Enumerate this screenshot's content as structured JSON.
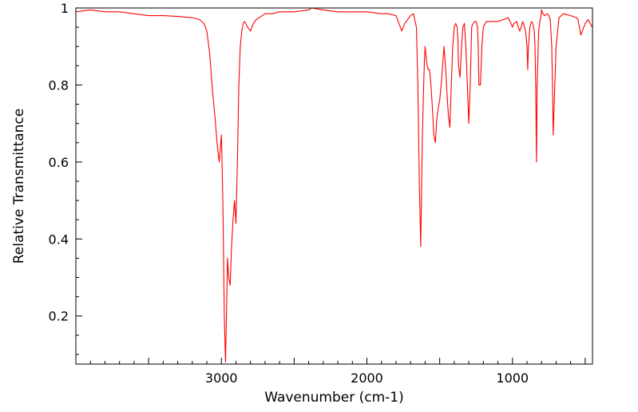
{
  "chart_data": {
    "type": "line",
    "title": "",
    "xlabel": "Wavenumber (cm-1)",
    "ylabel": "Relative Transmittance",
    "xlim": [
      4000,
      450
    ],
    "ylim": [
      0.075,
      1.0
    ],
    "x_reversed": true,
    "x_ticks_major": [
      3000,
      2000,
      1000
    ],
    "y_ticks_major": [
      0.2,
      0.4,
      0.6,
      0.8,
      1
    ],
    "x_tick_labels": [
      "3000",
      "2000",
      "1000"
    ],
    "y_tick_labels": [
      "0.2",
      "0.4",
      "0.6",
      "0.8",
      "1"
    ],
    "grid": false,
    "line_color": "#ff0000",
    "series": [
      {
        "x": [
          4000,
          3900,
          3800,
          3700,
          3600,
          3500,
          3400,
          3300,
          3200,
          3150,
          3120,
          3100,
          3080,
          3060,
          3045,
          3030,
          3015,
          3000,
          2990,
          2980,
          2972,
          2965,
          2958,
          2950,
          2940,
          2930,
          2920,
          2910,
          2900,
          2890,
          2880,
          2870,
          2860,
          2850,
          2840,
          2820,
          2800,
          2780,
          2760,
          2740,
          2720,
          2700,
          2650,
          2600,
          2500,
          2400,
          2380,
          2300,
          2200,
          2100,
          2000,
          1900,
          1850,
          1800,
          1780,
          1760,
          1740,
          1720,
          1700,
          1680,
          1660,
          1650,
          1640,
          1630,
          1620,
          1610,
          1605,
          1600,
          1595,
          1590,
          1580,
          1570,
          1560,
          1550,
          1540,
          1530,
          1520,
          1510,
          1500,
          1490,
          1480,
          1470,
          1460,
          1450,
          1440,
          1430,
          1420,
          1410,
          1400,
          1390,
          1380,
          1375,
          1370,
          1360,
          1350,
          1340,
          1330,
          1320,
          1310,
          1300,
          1290,
          1280,
          1270,
          1260,
          1250,
          1240,
          1235,
          1230,
          1220,
          1210,
          1200,
          1180,
          1150,
          1100,
          1060,
          1030,
          1010,
          1000,
          990,
          970,
          960,
          950,
          940,
          930,
          920,
          910,
          900,
          895,
          890,
          880,
          870,
          860,
          850,
          845,
          840,
          835,
          830,
          820,
          810,
          805,
          800,
          790,
          780,
          760,
          750,
          740,
          730,
          725,
          720,
          700,
          680,
          650,
          600,
          560,
          550,
          540,
          530,
          520,
          500,
          480,
          460,
          450
        ],
        "y": [
          0.99,
          0.995,
          0.99,
          0.99,
          0.985,
          0.98,
          0.98,
          0.978,
          0.975,
          0.97,
          0.96,
          0.94,
          0.88,
          0.78,
          0.72,
          0.65,
          0.6,
          0.67,
          0.5,
          0.2,
          0.08,
          0.2,
          0.35,
          0.3,
          0.28,
          0.38,
          0.45,
          0.5,
          0.44,
          0.6,
          0.8,
          0.9,
          0.94,
          0.96,
          0.965,
          0.95,
          0.94,
          0.96,
          0.97,
          0.975,
          0.98,
          0.985,
          0.985,
          0.99,
          0.99,
          0.995,
          1.0,
          0.995,
          0.99,
          0.99,
          0.99,
          0.985,
          0.985,
          0.98,
          0.96,
          0.94,
          0.96,
          0.97,
          0.98,
          0.985,
          0.95,
          0.8,
          0.55,
          0.38,
          0.65,
          0.8,
          0.86,
          0.9,
          0.88,
          0.86,
          0.84,
          0.84,
          0.8,
          0.74,
          0.67,
          0.65,
          0.71,
          0.74,
          0.76,
          0.8,
          0.85,
          0.9,
          0.85,
          0.78,
          0.72,
          0.69,
          0.8,
          0.9,
          0.95,
          0.96,
          0.95,
          0.92,
          0.85,
          0.82,
          0.9,
          0.95,
          0.96,
          0.9,
          0.8,
          0.7,
          0.8,
          0.95,
          0.96,
          0.965,
          0.965,
          0.95,
          0.9,
          0.8,
          0.8,
          0.9,
          0.95,
          0.965,
          0.965,
          0.965,
          0.97,
          0.975,
          0.96,
          0.95,
          0.96,
          0.965,
          0.95,
          0.94,
          0.95,
          0.965,
          0.955,
          0.94,
          0.9,
          0.84,
          0.9,
          0.95,
          0.965,
          0.96,
          0.94,
          0.9,
          0.8,
          0.6,
          0.8,
          0.94,
          0.97,
          0.975,
          0.995,
          0.985,
          0.98,
          0.985,
          0.98,
          0.97,
          0.9,
          0.8,
          0.67,
          0.9,
          0.975,
          0.985,
          0.98,
          0.975,
          0.97,
          0.95,
          0.93,
          0.94,
          0.96,
          0.97,
          0.955,
          0.95
        ]
      }
    ]
  }
}
